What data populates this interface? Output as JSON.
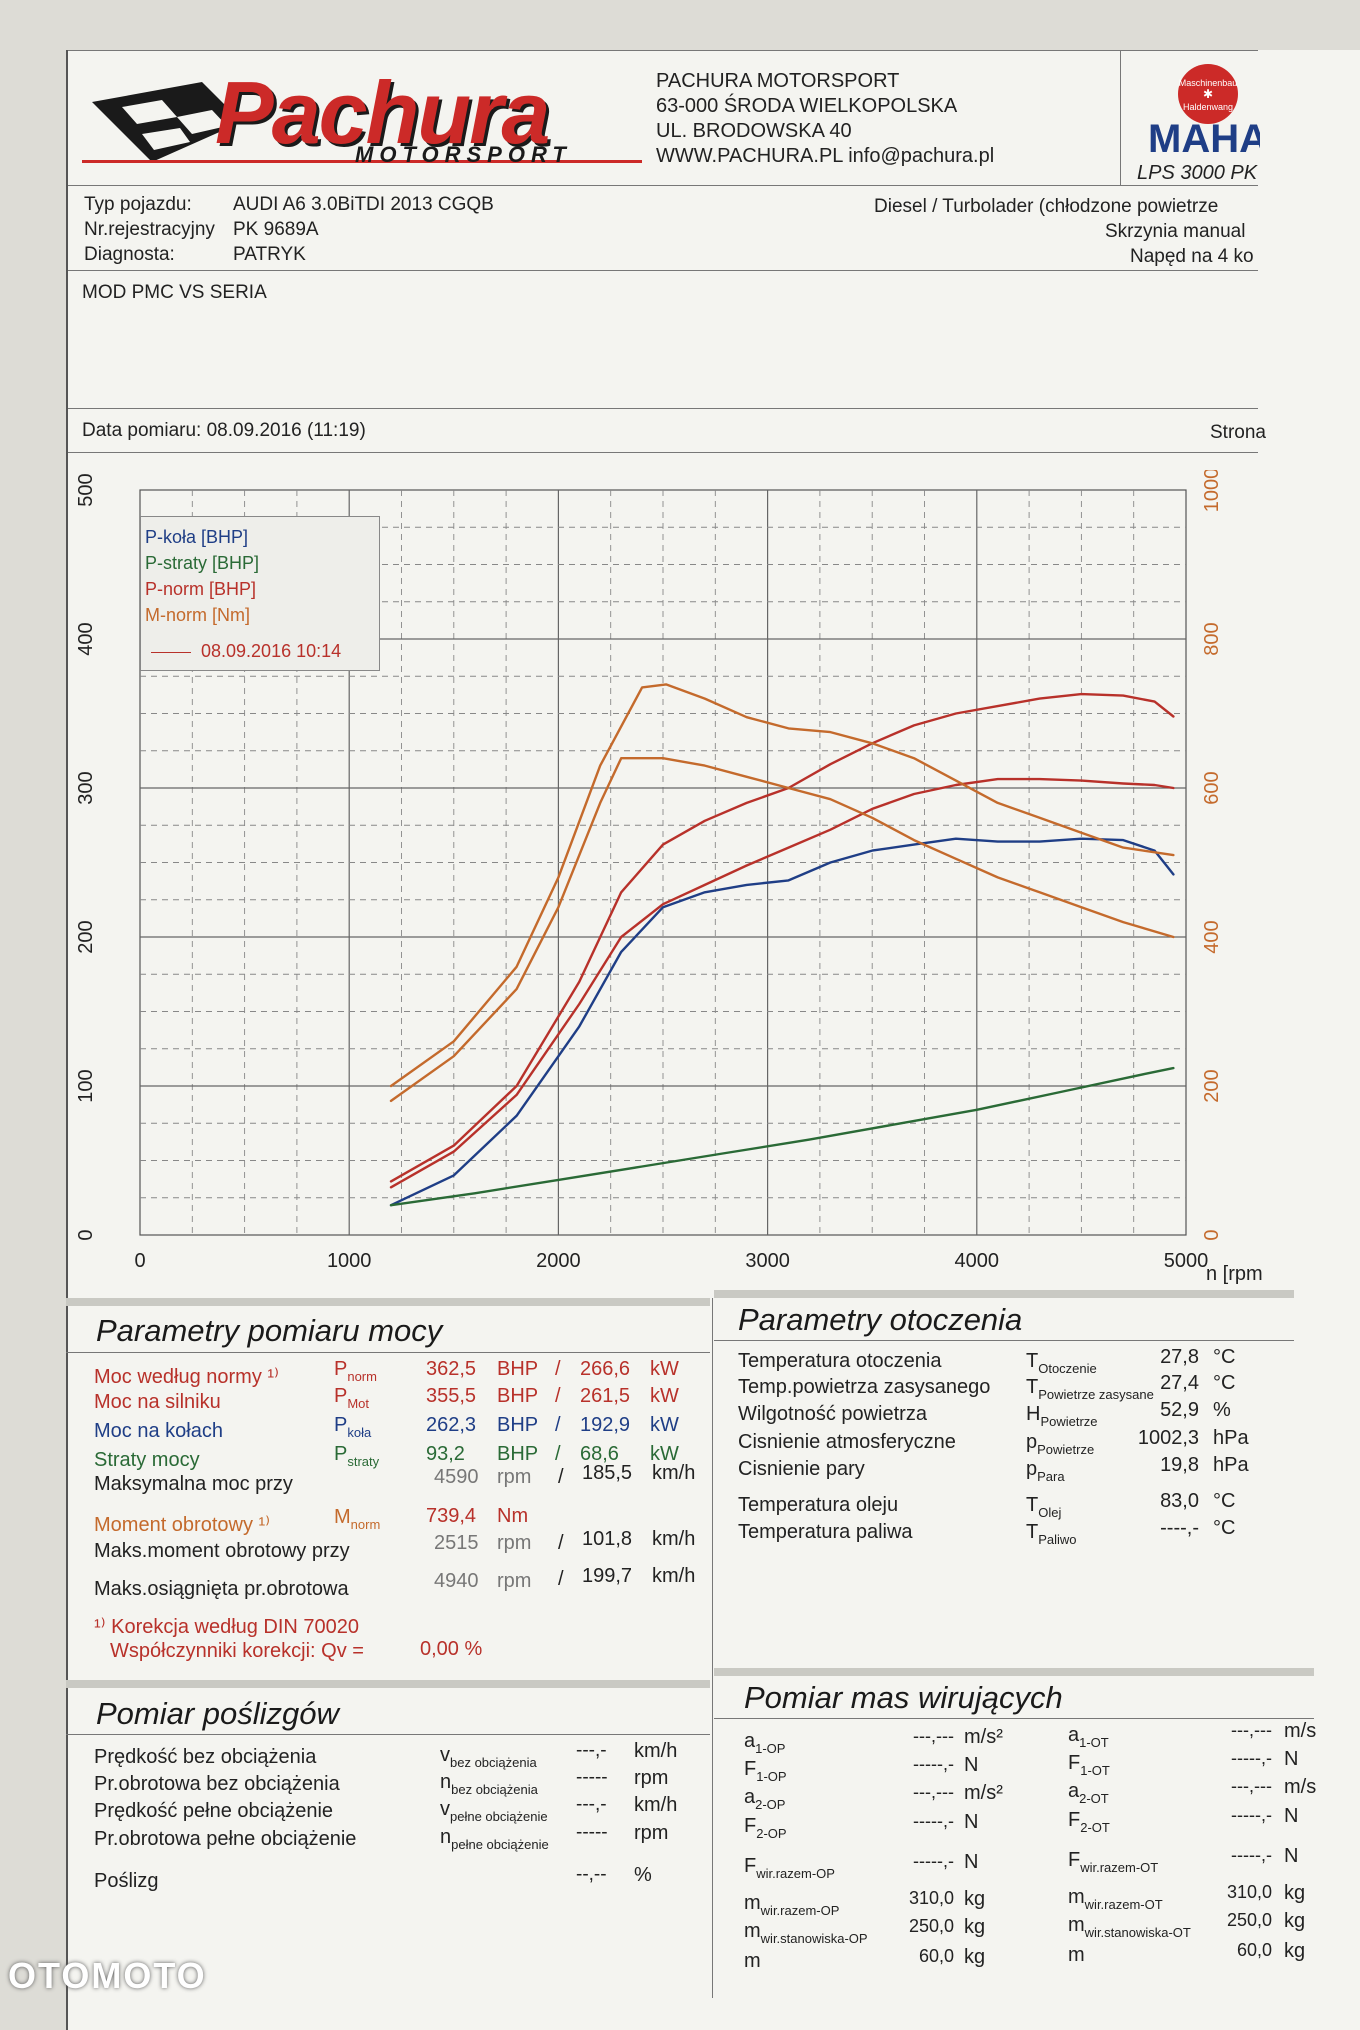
{
  "company": {
    "logo_text": "Pachura",
    "logo_sub": "MOTORSPORT",
    "name": "PACHURA MOTORSPORT",
    "city": "63-000 ŚRODA WIELKOPOLSKA",
    "street": "UL. BRODOWSKA 40",
    "web": "WWW.PACHURA.PL info@pachura.pl"
  },
  "maha": {
    "badge_line1": "Maschinenbau",
    "badge_line2": "Haldenwang",
    "brand": "MAHA",
    "model": "LPS 3000 PK"
  },
  "vehicle": {
    "type_label": "Typ pojazdu:",
    "type_value": "AUDI A6 3.0BiTDI 2013 CGQB",
    "reg_label": "Nr.rejestracyjny",
    "reg_value": "PK 9689A",
    "diag_label": "Diagnosta:",
    "diag_value": "PATRYK",
    "engine": "Diesel / Turbolader (chłodzone powietrze",
    "gearbox": "Skrzynia manual",
    "drive": "Napęd na 4 ko"
  },
  "note": "MOD PMC VS SERIA",
  "measure_date": "Data pomiaru: 08.09.2016 (11:19)",
  "page_label": "Strona",
  "chart_data": {
    "type": "line",
    "title": "",
    "xlabel": "n [rpm",
    "ylabel_left": "BHP",
    "ylabel_right": "Nm",
    "xlim": [
      0,
      5000
    ],
    "ylim_left": [
      0,
      500
    ],
    "ylim_right": [
      0,
      1000
    ],
    "x_ticks": [
      "0",
      "1000",
      "2000",
      "3000",
      "4000",
      "5000"
    ],
    "y_ticks_left": [
      "0",
      "100",
      "200",
      "300",
      "400",
      "500"
    ],
    "y_ticks_right": [
      "0",
      "200",
      "400",
      "600",
      "800",
      "1000"
    ],
    "legend": [
      "P-koła [BHP]",
      "P-straty [BHP]",
      "P-norm [BHP]",
      "M-norm [Nm]"
    ],
    "legend_run": "08.09.2016 10:14",
    "series": [
      {
        "name": "P-koła [BHP]",
        "axis": "left",
        "color": "#1f3e86",
        "x": [
          1200,
          1500,
          1800,
          2100,
          2300,
          2500,
          2700,
          2900,
          3100,
          3300,
          3500,
          3700,
          3900,
          4100,
          4300,
          4500,
          4700,
          4850,
          4940
        ],
        "y": [
          20,
          40,
          80,
          140,
          190,
          220,
          230,
          235,
          238,
          250,
          258,
          262,
          266,
          264,
          264,
          266,
          265,
          258,
          242
        ]
      },
      {
        "name": "P-straty [BHP]",
        "axis": "left",
        "color": "#2a6a36",
        "x": [
          1200,
          1600,
          2000,
          2400,
          2800,
          3200,
          3600,
          4000,
          4400,
          4800,
          4940
        ],
        "y": [
          20,
          28,
          37,
          46,
          55,
          64,
          74,
          84,
          96,
          108,
          112
        ]
      },
      {
        "name": "P-norm [BHP] (MOD)",
        "axis": "left",
        "color": "#b8312a",
        "x": [
          1200,
          1500,
          1800,
          2100,
          2300,
          2500,
          2700,
          2900,
          3100,
          3300,
          3500,
          3700,
          3900,
          4100,
          4300,
          4500,
          4700,
          4850,
          4940
        ],
        "y": [
          36,
          60,
          100,
          170,
          230,
          262,
          278,
          290,
          300,
          316,
          330,
          342,
          350,
          355,
          360,
          363,
          362,
          358,
          348
        ]
      },
      {
        "name": "P-norm [BHP] (SERIA)",
        "axis": "left",
        "color": "#b8312a",
        "x": [
          1200,
          1500,
          1800,
          2100,
          2300,
          2500,
          2700,
          2900,
          3100,
          3300,
          3500,
          3700,
          3900,
          4100,
          4300,
          4500,
          4700,
          4850,
          4940
        ],
        "y": [
          32,
          56,
          94,
          155,
          200,
          222,
          235,
          248,
          260,
          272,
          286,
          296,
          302,
          306,
          306,
          305,
          303,
          302,
          300
        ]
      },
      {
        "name": "M-norm [Nm] (MOD)",
        "axis": "right",
        "color": "#c46a2c",
        "x": [
          1200,
          1500,
          1800,
          2000,
          2200,
          2400,
          2515,
          2700,
          2900,
          3100,
          3300,
          3500,
          3700,
          3900,
          4100,
          4300,
          4500,
          4700,
          4940
        ],
        "y": [
          200,
          260,
          360,
          480,
          630,
          735,
          739,
          720,
          695,
          680,
          675,
          660,
          640,
          610,
          580,
          560,
          540,
          520,
          510
        ]
      },
      {
        "name": "M-norm [Nm] (SERIA)",
        "axis": "right",
        "color": "#c46a2c",
        "x": [
          1200,
          1500,
          1800,
          2000,
          2200,
          2300,
          2500,
          2700,
          2900,
          3100,
          3300,
          3500,
          3700,
          3900,
          4100,
          4300,
          4500,
          4700,
          4940
        ],
        "y": [
          180,
          240,
          330,
          440,
          580,
          640,
          640,
          630,
          615,
          600,
          585,
          560,
          530,
          505,
          480,
          460,
          440,
          420,
          400
        ]
      }
    ]
  },
  "power": {
    "title": "Parametry pomiaru mocy",
    "rows": [
      {
        "label": "Moc według normy ¹⁾",
        "sym": "P",
        "sub": "norm",
        "v1": "362,5",
        "u1": "BHP",
        "sep": "/",
        "v2": "266,6",
        "u2": "kW",
        "cls": "red"
      },
      {
        "label": "Moc na silniku",
        "sym": "P",
        "sub": "Mot",
        "v1": "355,5",
        "u1": "BHP",
        "sep": "/",
        "v2": "261,5",
        "u2": "kW",
        "cls": "red"
      },
      {
        "label": "Moc na kołach",
        "sym": "P",
        "sub": "koła",
        "v1": "262,3",
        "u1": "BHP",
        "sep": "/",
        "v2": "192,9",
        "u2": "kW",
        "cls": "blue"
      },
      {
        "label": "Straty mocy",
        "sym": "P",
        "sub": "straty",
        "v1": "93,2",
        "u1": "BHP",
        "sep": "/",
        "v2": "68,6",
        "u2": "kW",
        "cls": "green"
      }
    ],
    "maxpower_label": "Maksymalna moc przy",
    "maxpower_rpm": "4590",
    "maxpower_speed": "185,5",
    "torque_label": "Moment obrotowy ¹⁾",
    "torque_sym": "M",
    "torque_sub": "norm",
    "torque_value": "739,4",
    "torque_unit": "Nm",
    "maxtorque_label": "Maks.moment obrotowy przy",
    "maxtorque_rpm": "2515",
    "maxtorque_speed": "101,8",
    "maxrpm_label": "Maks.osiągnięta pr.obrotowa",
    "maxrpm_rpm": "4940",
    "maxrpm_speed": "199,7",
    "unit_rpm": "rpm",
    "unit_kmh": "km/h",
    "correction_note": "¹⁾ Korekcja według DIN 70020",
    "correction_label": "Współczynniki korekcji: Qv =",
    "correction_value": "0,00 %"
  },
  "ambient": {
    "title": "Parametry otoczenia",
    "rows": [
      {
        "label": "Temperatura otoczenia",
        "sym": "T",
        "sub": "Otoczenie",
        "value": "27,8",
        "unit": "°C"
      },
      {
        "label": "Temp.powietrza zasysanego",
        "sym": "T",
        "sub": "Powietrze zasysane",
        "value": "27,4",
        "unit": "°C"
      },
      {
        "label": "Wilgotność powietrza",
        "sym": "H",
        "sub": "Powietrze",
        "value": "52,9",
        "unit": "%"
      },
      {
        "label": "Cisnienie atmosferyczne",
        "sym": "p",
        "sub": "Powietrze",
        "value": "1002,3",
        "unit": "hPa"
      },
      {
        "label": "Cisnienie pary",
        "sym": "p",
        "sub": "Para",
        "value": "19,8",
        "unit": "hPa"
      },
      {
        "label": "Temperatura oleju",
        "sym": "T",
        "sub": "Olej",
        "value": "83,0",
        "unit": "°C"
      },
      {
        "label": "Temperatura paliwa",
        "sym": "T",
        "sub": "Paliwo",
        "value": "----,-",
        "unit": "°C"
      }
    ]
  },
  "slip": {
    "title": "Pomiar poślizgów",
    "rows": [
      {
        "label": "Prędkość bez obciążenia",
        "sym": "v",
        "sub": "bez obciążenia",
        "value": "---,-",
        "unit": "km/h"
      },
      {
        "label": "Pr.obrotowa bez obciążenia",
        "sym": "n",
        "sub": "bez obciążenia",
        "value": "-----",
        "unit": "rpm"
      },
      {
        "label": "Prędkość pełne obciążenie",
        "sym": "v",
        "sub": "pełne obciążenie",
        "value": "---,-",
        "unit": "km/h"
      },
      {
        "label": "Pr.obrotowa pełne obciążenie",
        "sym": "n",
        "sub": "pełne obciążenie",
        "value": "-----",
        "unit": "rpm"
      },
      {
        "label": "Poślizg",
        "sym": "",
        "sub": "",
        "value": "--,--",
        "unit": "%"
      }
    ]
  },
  "masses": {
    "title": "Pomiar mas wirujących",
    "left": [
      {
        "sym": "a",
        "sub": "1-OP",
        "value": "---,---",
        "unit": "m/s²"
      },
      {
        "sym": "F",
        "sub": "1-OP",
        "value": "-----,-",
        "unit": "N"
      },
      {
        "sym": "a",
        "sub": "2-OP",
        "value": "---,---",
        "unit": "m/s²"
      },
      {
        "sym": "F",
        "sub": "2-OP",
        "value": "-----,-",
        "unit": "N"
      },
      {
        "sym": "F",
        "sub": "wir.razem-OP",
        "value": "-----,-",
        "unit": "N"
      },
      {
        "sym": "m",
        "sub": "wir.razem-OP",
        "value": "310,0",
        "unit": "kg"
      },
      {
        "sym": "m",
        "sub": "wir.stanowiska-OP",
        "value": "250,0",
        "unit": "kg"
      },
      {
        "sym": "m",
        "sub": "",
        "value": "60,0",
        "unit": "kg"
      }
    ],
    "right": [
      {
        "sym": "a",
        "sub": "1-OT",
        "value": "---,---",
        "unit": "m/s"
      },
      {
        "sym": "F",
        "sub": "1-OT",
        "value": "-----,-",
        "unit": "N"
      },
      {
        "sym": "a",
        "sub": "2-OT",
        "value": "---,---",
        "unit": "m/s"
      },
      {
        "sym": "F",
        "sub": "2-OT",
        "value": "-----,-",
        "unit": "N"
      },
      {
        "sym": "F",
        "sub": "wir.razem-OT",
        "value": "-----,-",
        "unit": "N"
      },
      {
        "sym": "m",
        "sub": "wir.razem-OT",
        "value": "310,0",
        "unit": "kg"
      },
      {
        "sym": "m",
        "sub": "wir.stanowiska-OT",
        "value": "250,0",
        "unit": "kg"
      },
      {
        "sym": "m",
        "sub": "",
        "value": "60,0",
        "unit": "kg"
      }
    ]
  },
  "watermark": "OTOMOTO"
}
